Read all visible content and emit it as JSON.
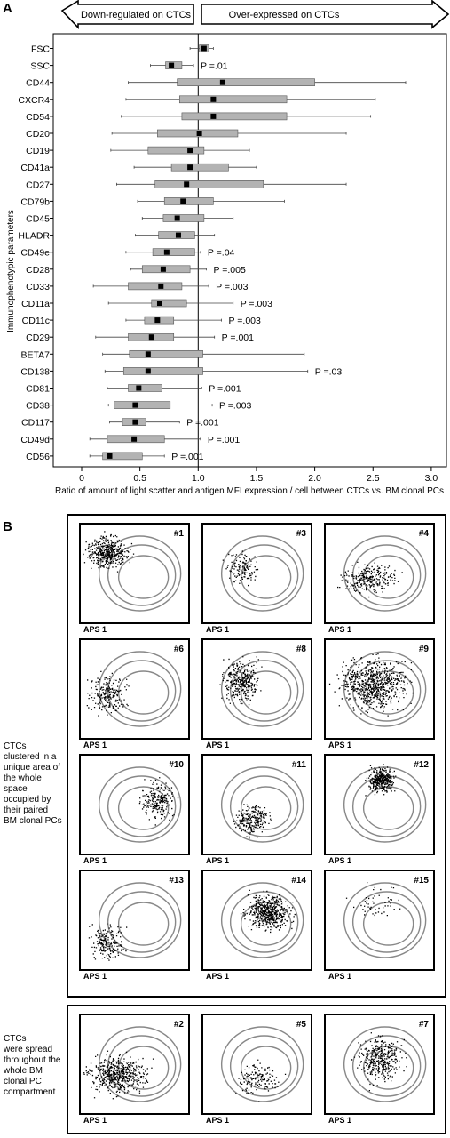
{
  "figure": {
    "panel_a_letter": "A",
    "panel_b_letter": "B"
  },
  "chart_data": {
    "type": "boxplot",
    "header_left": "Down-regulated on CTCs",
    "header_right": "Over-expressed on CTCs",
    "ylabel": "Immunophenotypic parameters",
    "xlabel": "Ratio of amount of light scatter and antigen MFI expression / cell between CTCs vs. BM clonal PCs",
    "xlim": [
      0,
      3.0
    ],
    "xticks": [
      0,
      0.5,
      1.0,
      1.5,
      2.0,
      2.5,
      3.0
    ],
    "xtick_labels": [
      "0",
      "0.5",
      "1.0",
      "1.5",
      "2.0",
      "2.5",
      "3.0"
    ],
    "reference_line": 1.0,
    "rows": [
      {
        "label": "FSC",
        "whisker": [
          0.93,
          1.13
        ],
        "box": [
          1.01,
          1.09
        ],
        "median": 1.05,
        "p": ""
      },
      {
        "label": "SSC",
        "whisker": [
          0.59,
          0.96
        ],
        "box": [
          0.72,
          0.86
        ],
        "median": 0.77,
        "p": "P =.01"
      },
      {
        "label": "CD44",
        "whisker": [
          0.4,
          2.78
        ],
        "box": [
          0.82,
          2.0
        ],
        "median": 1.21,
        "p": ""
      },
      {
        "label": "CXCR4",
        "whisker": [
          0.38,
          2.52
        ],
        "box": [
          0.84,
          1.76
        ],
        "median": 1.13,
        "p": ""
      },
      {
        "label": "CD54",
        "whisker": [
          0.34,
          2.48
        ],
        "box": [
          0.86,
          1.76
        ],
        "median": 1.13,
        "p": ""
      },
      {
        "label": "CD20",
        "whisker": [
          0.26,
          2.27
        ],
        "box": [
          0.65,
          1.34
        ],
        "median": 1.01,
        "p": ""
      },
      {
        "label": "CD19",
        "whisker": [
          0.25,
          1.44
        ],
        "box": [
          0.57,
          1.05
        ],
        "median": 0.93,
        "p": ""
      },
      {
        "label": "CD41a",
        "whisker": [
          0.45,
          1.5
        ],
        "box": [
          0.77,
          1.26
        ],
        "median": 0.93,
        "p": ""
      },
      {
        "label": "CD27",
        "whisker": [
          0.3,
          2.27
        ],
        "box": [
          0.63,
          1.56
        ],
        "median": 0.9,
        "p": ""
      },
      {
        "label": "CD79b",
        "whisker": [
          0.48,
          1.74
        ],
        "box": [
          0.71,
          1.13
        ],
        "median": 0.87,
        "p": ""
      },
      {
        "label": "CD45",
        "whisker": [
          0.52,
          1.3
        ],
        "box": [
          0.7,
          1.05
        ],
        "median": 0.82,
        "p": ""
      },
      {
        "label": "HLADR",
        "whisker": [
          0.46,
          1.14
        ],
        "box": [
          0.66,
          0.97
        ],
        "median": 0.83,
        "p": ""
      },
      {
        "label": "CD49e",
        "whisker": [
          0.38,
          1.02
        ],
        "box": [
          0.61,
          0.97
        ],
        "median": 0.73,
        "p": "P =.04"
      },
      {
        "label": "CD28",
        "whisker": [
          0.42,
          1.07
        ],
        "box": [
          0.52,
          0.93
        ],
        "median": 0.7,
        "p": "P =.005"
      },
      {
        "label": "CD33",
        "whisker": [
          0.1,
          1.09
        ],
        "box": [
          0.4,
          0.86
        ],
        "median": 0.68,
        "p": "P =.003"
      },
      {
        "label": "CD11a",
        "whisker": [
          0.23,
          1.3
        ],
        "box": [
          0.6,
          0.9
        ],
        "median": 0.67,
        "p": "P =.003"
      },
      {
        "label": "CD11c",
        "whisker": [
          0.38,
          1.2
        ],
        "box": [
          0.54,
          0.79
        ],
        "median": 0.65,
        "p": "P =.003"
      },
      {
        "label": "CD29",
        "whisker": [
          0.12,
          1.14
        ],
        "box": [
          0.4,
          0.79
        ],
        "median": 0.6,
        "p": "P =.001"
      },
      {
        "label": "BETA7",
        "whisker": [
          0.18,
          1.91
        ],
        "box": [
          0.41,
          1.04
        ],
        "median": 0.57,
        "p": ""
      },
      {
        "label": "CD138",
        "whisker": [
          0.2,
          1.94
        ],
        "box": [
          0.36,
          1.04
        ],
        "median": 0.57,
        "p": "P =.03"
      },
      {
        "label": "CD81",
        "whisker": [
          0.22,
          1.03
        ],
        "box": [
          0.4,
          0.69
        ],
        "median": 0.49,
        "p": "P =.001"
      },
      {
        "label": "CD38",
        "whisker": [
          0.23,
          1.12
        ],
        "box": [
          0.28,
          0.76
        ],
        "median": 0.46,
        "p": "P =.003"
      },
      {
        "label": "CD117",
        "whisker": [
          0.24,
          0.84
        ],
        "box": [
          0.35,
          0.55
        ],
        "median": 0.46,
        "p": "P =.001"
      },
      {
        "label": "CD49d",
        "whisker": [
          0.07,
          1.02
        ],
        "box": [
          0.22,
          0.71
        ],
        "median": 0.45,
        "p": "P =.001"
      },
      {
        "label": "CD56",
        "whisker": [
          0.07,
          0.71
        ],
        "box": [
          0.18,
          0.52
        ],
        "median": 0.24,
        "p": "P =.001"
      }
    ]
  },
  "panel_b": {
    "group1_caption": [
      "CTCs",
      "clustered in a",
      "unique area of",
      "the whole",
      "space",
      "occupied by",
      "their paired",
      "BM clonal PCs"
    ],
    "group2_caption": [
      "CTCs",
      "were spread",
      "throughout the",
      "whole BM",
      "clonal PC",
      "compartment"
    ],
    "axis_label": "APS 1",
    "group1_plots": [
      "#1",
      "#3",
      "#4",
      "#6",
      "#8",
      "#9",
      "#10",
      "#11",
      "#12",
      "#13",
      "#14",
      "#15"
    ],
    "group2_plots": [
      "#2",
      "#5",
      "#7"
    ]
  }
}
